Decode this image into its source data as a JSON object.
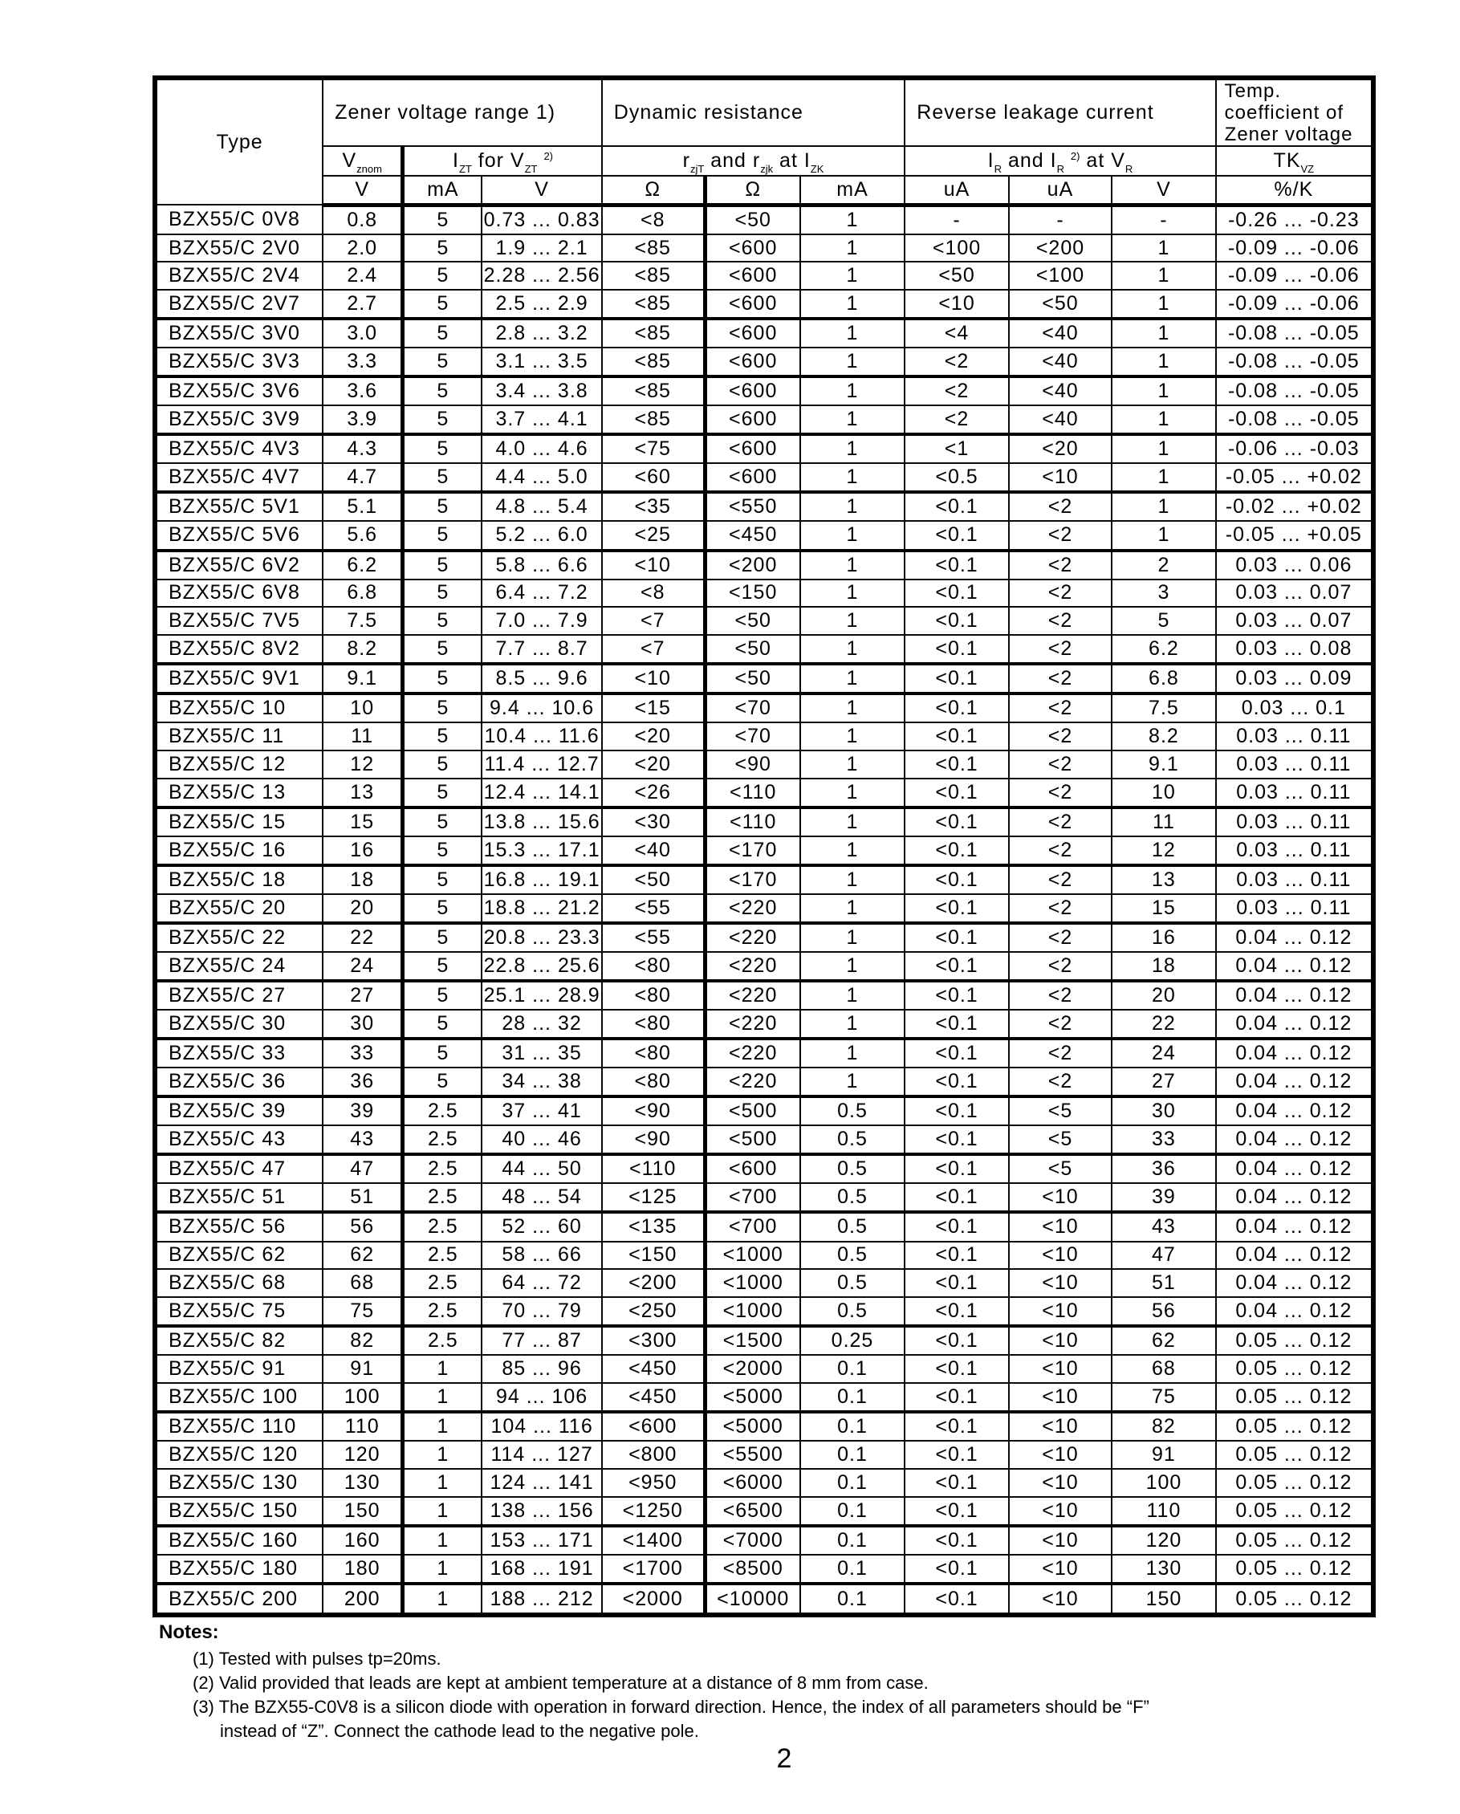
{
  "page": {
    "number": "2"
  },
  "table": {
    "header": {
      "type_label": "Type",
      "groups": [
        {
          "label": "Zener voltage range 1)",
          "span": 3
        },
        {
          "label": "Dynamic resistance",
          "span": 3
        },
        {
          "label": "Reverse leakage current",
          "span": 3
        },
        {
          "label": "Temp. coefficient of Zener voltage",
          "span": 1
        }
      ],
      "params": [
        {
          "segments": [
            {
              "t": "V"
            },
            {
              "sub": "znom"
            }
          ],
          "span": 1
        },
        {
          "segments": [
            {
              "t": "I"
            },
            {
              "sub": "ZT"
            },
            {
              "t": " for V"
            },
            {
              "sub": "ZT"
            },
            {
              "t": " "
            },
            {
              "sup": "2)"
            }
          ],
          "span": 2
        },
        {
          "segments": [
            {
              "t": "r"
            },
            {
              "sub": "zjT"
            },
            {
              "t": " and r"
            },
            {
              "sub": "zjk"
            },
            {
              "t": " at I"
            },
            {
              "sub": "ZK"
            }
          ],
          "span": 3
        },
        {
          "segments": [
            {
              "t": "I"
            },
            {
              "sub": "R"
            },
            {
              "t": " and I"
            },
            {
              "sub": "R"
            },
            {
              "t": " "
            },
            {
              "sup": "2)"
            },
            {
              "t": " at V"
            },
            {
              "sub": "R"
            }
          ],
          "span": 3
        },
        {
          "segments": [
            {
              "t": "TK"
            },
            {
              "sub": "VZ"
            }
          ],
          "span": 1
        }
      ],
      "units": [
        "V",
        "mA",
        "V",
        "Ω",
        "Ω",
        "mA",
        "uA",
        "uA",
        "V",
        "%/K"
      ]
    },
    "rows": [
      [
        "BZX55/C 0V8",
        "0.8",
        "5",
        "0.73 ... 0.83",
        "<8",
        "<50",
        "1",
        "-",
        "-",
        "-",
        "-0.26 ... -0.23"
      ],
      [
        "BZX55/C 2V0",
        "2.0",
        "5",
        "1.9 ... 2.1",
        "<85",
        "<600",
        "1",
        "<100",
        "<200",
        "1",
        "-0.09 ... -0.06"
      ],
      [
        "BZX55/C 2V4",
        "2.4",
        "5",
        "2.28 ... 2.56",
        "<85",
        "<600",
        "1",
        "<50",
        "<100",
        "1",
        "-0.09 ... -0.06"
      ],
      [
        "BZX55/C 2V7",
        "2.7",
        "5",
        "2.5 ... 2.9",
        "<85",
        "<600",
        "1",
        "<10",
        "<50",
        "1",
        "-0.09 ... -0.06"
      ],
      [
        "BZX55/C 3V0",
        "3.0",
        "5",
        "2.8 ... 3.2",
        "<85",
        "<600",
        "1",
        "<4",
        "<40",
        "1",
        "-0.08 ... -0.05"
      ],
      [
        "BZX55/C 3V3",
        "3.3",
        "5",
        "3.1 ... 3.5",
        "<85",
        "<600",
        "1",
        "<2",
        "<40",
        "1",
        "-0.08 ... -0.05"
      ],
      [
        "BZX55/C 3V6",
        "3.6",
        "5",
        "3.4 ... 3.8",
        "<85",
        "<600",
        "1",
        "<2",
        "<40",
        "1",
        "-0.08 ... -0.05"
      ],
      [
        "BZX55/C 3V9",
        "3.9",
        "5",
        "3.7 ... 4.1",
        "<85",
        "<600",
        "1",
        "<2",
        "<40",
        "1",
        "-0.08 ... -0.05"
      ],
      [
        "BZX55/C 4V3",
        "4.3",
        "5",
        "4.0 ... 4.6",
        "<75",
        "<600",
        "1",
        "<1",
        "<20",
        "1",
        "-0.06 ... -0.03"
      ],
      [
        "BZX55/C 4V7",
        "4.7",
        "5",
        "4.4 ... 5.0",
        "<60",
        "<600",
        "1",
        "<0.5",
        "<10",
        "1",
        "-0.05 ... +0.02"
      ],
      [
        "BZX55/C 5V1",
        "5.1",
        "5",
        "4.8 ... 5.4",
        "<35",
        "<550",
        "1",
        "<0.1",
        "<2",
        "1",
        "-0.02 ... +0.02"
      ],
      [
        "BZX55/C 5V6",
        "5.6",
        "5",
        "5.2 ... 6.0",
        "<25",
        "<450",
        "1",
        "<0.1",
        "<2",
        "1",
        "-0.05 ... +0.05"
      ],
      [
        "BZX55/C 6V2",
        "6.2",
        "5",
        "5.8 ... 6.6",
        "<10",
        "<200",
        "1",
        "<0.1",
        "<2",
        "2",
        "0.03 ... 0.06"
      ],
      [
        "BZX55/C 6V8",
        "6.8",
        "5",
        "6.4 ... 7.2",
        "<8",
        "<150",
        "1",
        "<0.1",
        "<2",
        "3",
        "0.03 ... 0.07"
      ],
      [
        "BZX55/C 7V5",
        "7.5",
        "5",
        "7.0 ... 7.9",
        "<7",
        "<50",
        "1",
        "<0.1",
        "<2",
        "5",
        "0.03 ... 0.07"
      ],
      [
        "BZX55/C 8V2",
        "8.2",
        "5",
        "7.7 ... 8.7",
        "<7",
        "<50",
        "1",
        "<0.1",
        "<2",
        "6.2",
        "0.03 ... 0.08"
      ],
      [
        "BZX55/C 9V1",
        "9.1",
        "5",
        "8.5 ... 9.6",
        "<10",
        "<50",
        "1",
        "<0.1",
        "<2",
        "6.8",
        "0.03 ... 0.09"
      ],
      [
        "BZX55/C 10",
        "10",
        "5",
        "9.4 ... 10.6",
        "<15",
        "<70",
        "1",
        "<0.1",
        "<2",
        "7.5",
        "0.03 ... 0.1"
      ],
      [
        "BZX55/C 11",
        "11",
        "5",
        "10.4 ... 11.6",
        "<20",
        "<70",
        "1",
        "<0.1",
        "<2",
        "8.2",
        "0.03 ... 0.11"
      ],
      [
        "BZX55/C 12",
        "12",
        "5",
        "11.4 ... 12.7",
        "<20",
        "<90",
        "1",
        "<0.1",
        "<2",
        "9.1",
        "0.03 ... 0.11"
      ],
      [
        "BZX55/C 13",
        "13",
        "5",
        "12.4 ... 14.1",
        "<26",
        "<110",
        "1",
        "<0.1",
        "<2",
        "10",
        "0.03 ... 0.11"
      ],
      [
        "BZX55/C 15",
        "15",
        "5",
        "13.8 ... 15.6",
        "<30",
        "<110",
        "1",
        "<0.1",
        "<2",
        "11",
        "0.03 ... 0.11"
      ],
      [
        "BZX55/C 16",
        "16",
        "5",
        "15.3 ... 17.1",
        "<40",
        "<170",
        "1",
        "<0.1",
        "<2",
        "12",
        "0.03 ... 0.11"
      ],
      [
        "BZX55/C 18",
        "18",
        "5",
        "16.8 ... 19.1",
        "<50",
        "<170",
        "1",
        "<0.1",
        "<2",
        "13",
        "0.03 ... 0.11"
      ],
      [
        "BZX55/C 20",
        "20",
        "5",
        "18.8 ... 21.2",
        "<55",
        "<220",
        "1",
        "<0.1",
        "<2",
        "15",
        "0.03 ... 0.11"
      ],
      [
        "BZX55/C 22",
        "22",
        "5",
        "20.8 ... 23.3",
        "<55",
        "<220",
        "1",
        "<0.1",
        "<2",
        "16",
        "0.04 ... 0.12"
      ],
      [
        "BZX55/C 24",
        "24",
        "5",
        "22.8 ... 25.6",
        "<80",
        "<220",
        "1",
        "<0.1",
        "<2",
        "18",
        "0.04 ... 0.12"
      ],
      [
        "BZX55/C 27",
        "27",
        "5",
        "25.1 ... 28.9",
        "<80",
        "<220",
        "1",
        "<0.1",
        "<2",
        "20",
        "0.04 ... 0.12"
      ],
      [
        "BZX55/C 30",
        "30",
        "5",
        "28 ... 32",
        "<80",
        "<220",
        "1",
        "<0.1",
        "<2",
        "22",
        "0.04 ... 0.12"
      ],
      [
        "BZX55/C 33",
        "33",
        "5",
        "31 ... 35",
        "<80",
        "<220",
        "1",
        "<0.1",
        "<2",
        "24",
        "0.04 ... 0.12"
      ],
      [
        "BZX55/C 36",
        "36",
        "5",
        "34 ... 38",
        "<80",
        "<220",
        "1",
        "<0.1",
        "<2",
        "27",
        "0.04 ... 0.12"
      ],
      [
        "BZX55/C 39",
        "39",
        "2.5",
        "37 ... 41",
        "<90",
        "<500",
        "0.5",
        "<0.1",
        "<5",
        "30",
        "0.04 ... 0.12"
      ],
      [
        "BZX55/C 43",
        "43",
        "2.5",
        "40 ... 46",
        "<90",
        "<500",
        "0.5",
        "<0.1",
        "<5",
        "33",
        "0.04 ... 0.12"
      ],
      [
        "BZX55/C 47",
        "47",
        "2.5",
        "44 ... 50",
        "<110",
        "<600",
        "0.5",
        "<0.1",
        "<5",
        "36",
        "0.04 ... 0.12"
      ],
      [
        "BZX55/C 51",
        "51",
        "2.5",
        "48 ... 54",
        "<125",
        "<700",
        "0.5",
        "<0.1",
        "<10",
        "39",
        "0.04 ... 0.12"
      ],
      [
        "BZX55/C 56",
        "56",
        "2.5",
        "52 ... 60",
        "<135",
        "<700",
        "0.5",
        "<0.1",
        "<10",
        "43",
        "0.04 ... 0.12"
      ],
      [
        "BZX55/C 62",
        "62",
        "2.5",
        "58 ... 66",
        "<150",
        "<1000",
        "0.5",
        "<0.1",
        "<10",
        "47",
        "0.04 ... 0.12"
      ],
      [
        "BZX55/C 68",
        "68",
        "2.5",
        "64 ... 72",
        "<200",
        "<1000",
        "0.5",
        "<0.1",
        "<10",
        "51",
        "0.04 ... 0.12"
      ],
      [
        "BZX55/C 75",
        "75",
        "2.5",
        "70 ... 79",
        "<250",
        "<1000",
        "0.5",
        "<0.1",
        "<10",
        "56",
        "0.04 ... 0.12"
      ],
      [
        "BZX55/C 82",
        "82",
        "2.5",
        "77 ... 87",
        "<300",
        "<1500",
        "0.25",
        "<0.1",
        "<10",
        "62",
        "0.05 ... 0.12"
      ],
      [
        "BZX55/C 91",
        "91",
        "1",
        "85 ... 96",
        "<450",
        "<2000",
        "0.1",
        "<0.1",
        "<10",
        "68",
        "0.05 ... 0.12"
      ],
      [
        "BZX55/C 100",
        "100",
        "1",
        "94 ... 106",
        "<450",
        "<5000",
        "0.1",
        "<0.1",
        "<10",
        "75",
        "0.05 ... 0.12"
      ],
      [
        "BZX55/C 110",
        "110",
        "1",
        "104 ... 116",
        "<600",
        "<5000",
        "0.1",
        "<0.1",
        "<10",
        "82",
        "0.05 ... 0.12"
      ],
      [
        "BZX55/C 120",
        "120",
        "1",
        "114 ... 127",
        "<800",
        "<5500",
        "0.1",
        "<0.1",
        "<10",
        "91",
        "0.05 ... 0.12"
      ],
      [
        "BZX55/C 130",
        "130",
        "1",
        "124 ... 141",
        "<950",
        "<6000",
        "0.1",
        "<0.1",
        "<10",
        "100",
        "0.05 ... 0.12"
      ],
      [
        "BZX55/C 150",
        "150",
        "1",
        "138 ... 156",
        "<1250",
        "<6500",
        "0.1",
        "<0.1",
        "<10",
        "110",
        "0.05 ... 0.12"
      ],
      [
        "BZX55/C 160",
        "160",
        "1",
        "153 ... 171",
        "<1400",
        "<7000",
        "0.1",
        "<0.1",
        "<10",
        "120",
        "0.05 ... 0.12"
      ],
      [
        "BZX55/C 180",
        "180",
        "1",
        "168 ... 191",
        "<1700",
        "<8500",
        "0.1",
        "<0.1",
        "<10",
        "130",
        "0.05 ... 0.12"
      ],
      [
        "BZX55/C 200",
        "200",
        "1",
        "188 ... 212",
        "<2000",
        "<10000",
        "0.1",
        "<0.1",
        "<10",
        "150",
        "0.05 ... 0.12"
      ]
    ]
  },
  "notes": {
    "title": "Notes:",
    "lines": [
      "(1) Tested with pulses tp=20ms.",
      "(2) Valid provided that leads are kept at ambient temperature at a distance of 8 mm from case.",
      "(3) The BZX55-C0V8 is a silicon diode with operation in forward direction. Hence, the index of all parameters should be “F”",
      "instead of “Z”. Connect the cathode lead to the negative pole."
    ]
  }
}
